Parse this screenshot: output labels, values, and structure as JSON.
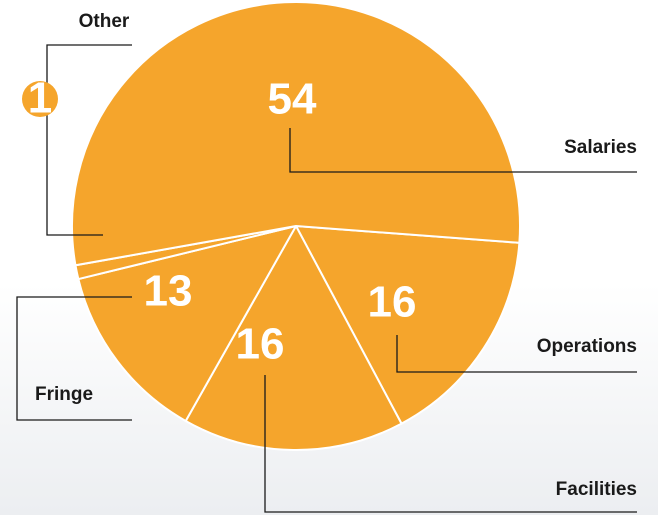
{
  "chart_data": {
    "type": "pie",
    "categories": [
      "Operations",
      "Facilities",
      "Fringe",
      "Other",
      "Salaries"
    ],
    "values": [
      16,
      16,
      13,
      1,
      54
    ],
    "color": "#f5a52c"
  }
}
